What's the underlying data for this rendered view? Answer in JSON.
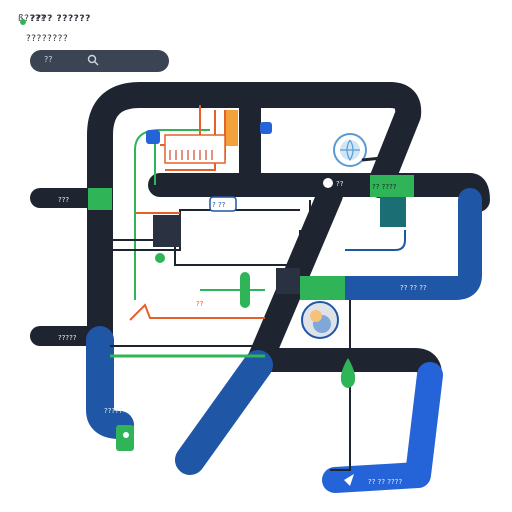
{
  "header": {
    "brand": "ß????",
    "title": "???? ??????",
    "subtitle": "????????",
    "search_label": "??",
    "accent": "#2fb457"
  },
  "palette": {
    "line_dark": "#1f2530",
    "line_blue": "#1f56a6",
    "line_bright_blue": "#2563d8",
    "line_green": "#2fb457",
    "wire_orange": "#e6602a",
    "wire_teal": "#1b6f74",
    "background": "#ffffff"
  },
  "icons": [
    "globe-icon",
    "lock-icon",
    "cloud-icon",
    "pin-icon",
    "drop-icon",
    "send-icon"
  ],
  "diagram": {
    "labels": {
      "top_left": "???",
      "left_mid": "????",
      "left_lower": "?????",
      "center_tag": "? ??",
      "right_mid": "?? ????",
      "right_lower": "?? ?? ??",
      "bottom_left": "?????",
      "bottom_right": "?? ?? ????",
      "bottom_center": "?? ?? ?? ?? ??",
      "node_a": "????",
      "node_b": "??",
      "node_c": "??"
    }
  }
}
